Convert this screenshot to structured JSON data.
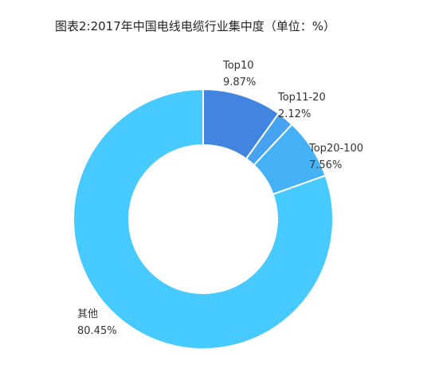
{
  "title": "图表2:2017年中国电线电缆行业集中度（单位：%）",
  "chart_data": {
    "type": "pie",
    "variant": "donut",
    "title": "图表2:2017年中国电线电缆行业集中度（单位：%）",
    "unit": "%",
    "slices": [
      {
        "name": "Top10",
        "value": 9.87,
        "value_label": "9.87%",
        "color": "#4285E0"
      },
      {
        "name": "Top11-20",
        "value": 2.12,
        "value_label": "2.12%",
        "color": "#47A3F0"
      },
      {
        "name": "Top20-100",
        "value": 7.56,
        "value_label": "7.56%",
        "color": "#45B2F7"
      },
      {
        "name": "其他",
        "value": 80.45,
        "value_label": "80.45%",
        "color": "#46CAFF"
      }
    ],
    "legend": "none",
    "labels": "outside"
  }
}
